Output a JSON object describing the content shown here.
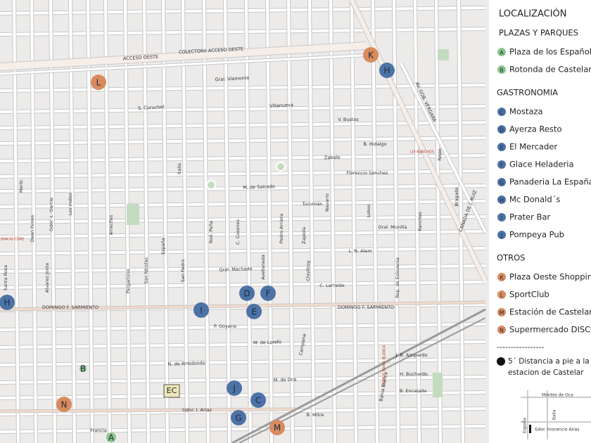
{
  "legend": {
    "title": "LOCALIZACIÓN",
    "sections": [
      {
        "heading": "PLAZAS Y PARQUES",
        "color": "#8cc58b",
        "items": [
          {
            "letter": "A",
            "label": "Plaza de los Españoles"
          },
          {
            "letter": "B",
            "label": "Rotonda de Castelar"
          }
        ]
      },
      {
        "heading": "GASTRONOMIA",
        "color": "#4c72a6",
        "items": [
          {
            "letter": "C",
            "label": "Mostaza"
          },
          {
            "letter": "D",
            "label": "Ayerza Resto"
          },
          {
            "letter": "E",
            "label": "El Mercader"
          },
          {
            "letter": "F",
            "label": "Glace Heladeria"
          },
          {
            "letter": "G",
            "label": "Panaderia La España"
          },
          {
            "letter": "H",
            "label": "Mc Donald´s"
          },
          {
            "letter": "I",
            "label": "Prater Bar"
          },
          {
            "letter": "J",
            "label": "Pompeya Pub"
          }
        ]
      },
      {
        "heading": "OTROS",
        "color": "#d98a5e",
        "items": [
          {
            "letter": "K",
            "label": "Plaza Oeste Shopping"
          },
          {
            "letter": "L",
            "label": "SportClub"
          },
          {
            "letter": "M",
            "label": "Estación de Castelar"
          },
          {
            "letter": "N",
            "label": "Supermercado DISCO"
          }
        ]
      }
    ],
    "separator": "-----------------",
    "note": [
      "5´ Distancia a pie a la",
      "estacion de Castelar"
    ]
  },
  "inset": {
    "labels": [
      "Montes de Oca",
      "Italia",
      "España",
      "Gdor. Inocencio Arias"
    ]
  },
  "markers": [
    {
      "letter": "K"
    },
    {
      "letter": "H"
    },
    {
      "letter": "L"
    },
    {
      "letter": "H"
    },
    {
      "letter": "D"
    },
    {
      "letter": "F"
    },
    {
      "letter": "I"
    },
    {
      "letter": "E"
    },
    {
      "letter": "J"
    },
    {
      "letter": "C"
    },
    {
      "letter": "G"
    },
    {
      "letter": "M"
    },
    {
      "letter": "N"
    },
    {
      "letter": "A"
    },
    {
      "letter": "B"
    }
  ],
  "places": [
    "EC",
    "ESPACIO CORE",
    "LIV RANCHOS",
    "DOMUS BAHIA BLANCA"
  ],
  "streets": [
    "ACCESO OESTE",
    "COLECTORA ACCESO OESTE",
    "Gral. Viamonte",
    "S. Curuchet",
    "Villanueva",
    "V. Bustos",
    "B. Hidalgo",
    "Zabala",
    "Florencio Sanchez",
    "M. de Salcedo",
    "Tucumán",
    "Gral. Munilla",
    "L. N. Alem",
    "Gral. Machado",
    "C. Larralde",
    "DOMINGO F. SARMIENTO",
    "DOMINGO F. SARMIENTO",
    "P. Goyena",
    "M. de Lorefo",
    "N. de Arredondo",
    "M. de Oca",
    "J. B. Azopardo",
    "H. Buchardo",
    "B. Encalada",
    "B. Mitre",
    "Gdor. I. Arias",
    "Francia",
    "AV. GOB. VERGARA",
    "CANADA DE J. RUIZ",
    "Merlo",
    "Dean Funes",
    "Gdor. L. Garcia",
    "Los Indios",
    "Italia",
    "San Pedro",
    "Santa Rosa",
    "Alvarez Jonte",
    "España",
    "San Nicolas",
    "Pergamino",
    "Arrecifes",
    "Rod. Peña",
    "C. Cosones",
    "Pedro Arrieta",
    "Avellaneda",
    "Zapiola",
    "Navarro",
    "Lobos",
    "Ranchos",
    "Bragado",
    "Rojas",
    "Chivilcoy",
    "Campana",
    "Rep. de Eslovenia",
    "Bahia Blanca"
  ]
}
